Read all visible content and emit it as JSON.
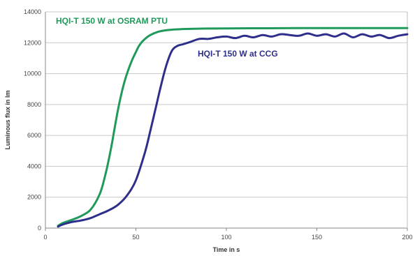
{
  "chart_data": {
    "type": "line",
    "xlabel": "Time in s",
    "ylabel": "Luminous flux in lm",
    "xlim": [
      0,
      200
    ],
    "ylim": [
      0,
      14000
    ],
    "xticks": [
      0,
      50,
      100,
      150,
      200
    ],
    "yticks": [
      0,
      2000,
      4000,
      6000,
      8000,
      10000,
      12000,
      14000
    ],
    "grid": "horizontal",
    "legend": "inline labels",
    "series": [
      {
        "name": "HQI-T 150 W at OSRAM PTU",
        "color": "#1f9a5a",
        "x": [
          7,
          10,
          15,
          20,
          25,
          30,
          33,
          36,
          38,
          40,
          42,
          44,
          46,
          48,
          50,
          52,
          55,
          58,
          62,
          66,
          70,
          75,
          80,
          90,
          100,
          120,
          140,
          160,
          180,
          200
        ],
        "y": [
          150,
          350,
          550,
          800,
          1200,
          2200,
          3400,
          5000,
          6300,
          7600,
          8700,
          9600,
          10300,
          10900,
          11400,
          11850,
          12250,
          12500,
          12700,
          12800,
          12850,
          12880,
          12900,
          12920,
          12930,
          12940,
          12950,
          12950,
          12950,
          12950
        ]
      },
      {
        "name": "HQI-T 150 W at CCG",
        "color": "#2e2f8a",
        "x": [
          7,
          10,
          15,
          20,
          25,
          30,
          35,
          40,
          45,
          50,
          55,
          58,
          61,
          64,
          67,
          70,
          73,
          76,
          80,
          85,
          90,
          95,
          100,
          105,
          110,
          115,
          120,
          125,
          130,
          135,
          140,
          145,
          150,
          155,
          160,
          165,
          170,
          175,
          180,
          185,
          190,
          195,
          200
        ],
        "y": [
          100,
          250,
          400,
          500,
          650,
          900,
          1150,
          1500,
          2100,
          3100,
          4900,
          6300,
          7800,
          9300,
          10600,
          11500,
          11800,
          11900,
          12050,
          12250,
          12250,
          12350,
          12400,
          12300,
          12450,
          12350,
          12500,
          12400,
          12550,
          12500,
          12450,
          12600,
          12450,
          12550,
          12400,
          12600,
          12350,
          12550,
          12400,
          12500,
          12300,
          12450,
          12550
        ]
      }
    ]
  }
}
